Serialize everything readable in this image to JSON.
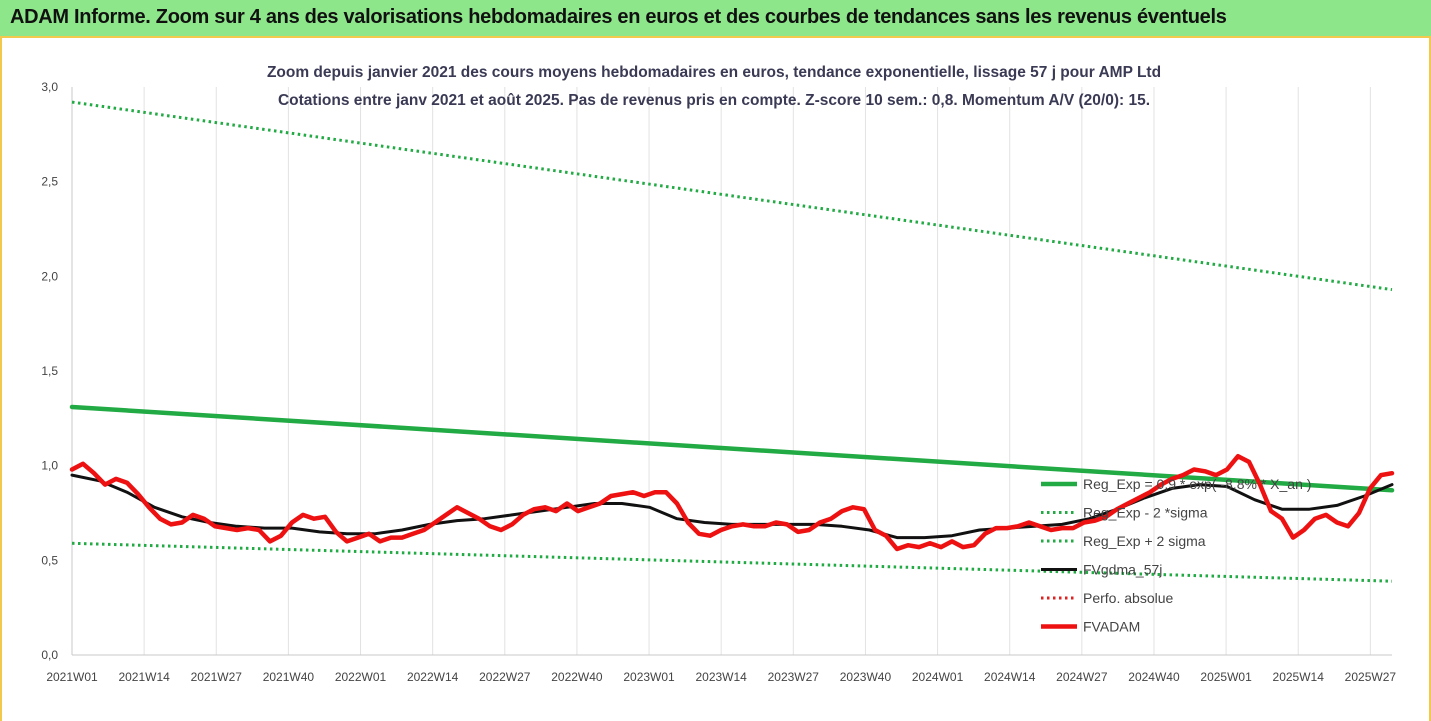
{
  "header": {
    "title": "ADAM Informe. Zoom sur 4 ans des valorisations hebdomadaires en euros et des courbes de tendances sans les revenus éventuels"
  },
  "chart_data": {
    "type": "line",
    "title_line1": "Zoom depuis janvier 2021 des cours moyens hebdomadaires en euros, tendance exponentielle, lissage 57 j pour AMP Ltd",
    "title_line2": "Cotations entre janv 2021 et août 2025. Pas de revenus pris en compte. Z-score 10 sem.: 0,8. Momentum A/V (20/0): 15.",
    "x_tick_labels": [
      "2021W01",
      "2021W14",
      "2021W27",
      "2021W40",
      "2022W01",
      "2022W14",
      "2022W27",
      "2022W40",
      "2023W01",
      "2023W14",
      "2023W27",
      "2023W40",
      "2024W01",
      "2024W14",
      "2024W27",
      "2024W40",
      "2025W01",
      "2025W14",
      "2025W27"
    ],
    "x_range_weeks": [
      0,
      240
    ],
    "ylim": [
      0,
      3.0
    ],
    "y_ticks": [
      "0,0",
      "0,5",
      "1,0",
      "1,5",
      "2,0",
      "2,5",
      "3,0"
    ],
    "grid": "vertical",
    "legend_position": "right-bottom",
    "series": [
      {
        "name": "Reg_Exp = 0,9 * exp( -8,8% * X_an )",
        "color": "#22aa44",
        "style": "solid-thick",
        "x": [
          0,
          240
        ],
        "y": [
          1.31,
          0.87
        ]
      },
      {
        "name": "Reg_Exp - 2 *sigma",
        "color": "#22aa44",
        "style": "dotted",
        "x": [
          0,
          240
        ],
        "y": [
          0.59,
          0.39
        ]
      },
      {
        "name": "Reg_Exp + 2 sigma",
        "color": "#22aa44",
        "style": "dotted",
        "x": [
          0,
          240
        ],
        "y": [
          2.92,
          1.93
        ]
      },
      {
        "name": "FVgdma_57j",
        "color": "#111111",
        "style": "solid",
        "x": [
          0,
          5,
          10,
          15,
          20,
          25,
          30,
          35,
          40,
          45,
          50,
          55,
          60,
          65,
          70,
          75,
          80,
          85,
          90,
          95,
          100,
          105,
          110,
          115,
          120,
          125,
          130,
          135,
          140,
          145,
          150,
          155,
          160,
          165,
          170,
          175,
          180,
          185,
          190,
          195,
          200,
          205,
          210,
          215,
          220,
          225,
          230,
          235,
          240
        ],
        "y": [
          0.95,
          0.92,
          0.86,
          0.78,
          0.73,
          0.7,
          0.68,
          0.67,
          0.67,
          0.65,
          0.64,
          0.64,
          0.66,
          0.69,
          0.71,
          0.72,
          0.74,
          0.76,
          0.78,
          0.8,
          0.8,
          0.78,
          0.72,
          0.7,
          0.69,
          0.69,
          0.69,
          0.69,
          0.68,
          0.66,
          0.62,
          0.62,
          0.63,
          0.66,
          0.67,
          0.68,
          0.69,
          0.72,
          0.77,
          0.83,
          0.88,
          0.9,
          0.89,
          0.82,
          0.77,
          0.77,
          0.79,
          0.84,
          0.9
        ]
      },
      {
        "name": "Perfo. absolue",
        "color": "#dd2222",
        "style": "dotted",
        "x": [],
        "y": []
      },
      {
        "name": "FVADAM",
        "color": "#ee1111",
        "style": "solid-thick",
        "x": [
          0,
          2,
          4,
          6,
          8,
          10,
          12,
          14,
          16,
          18,
          20,
          22,
          24,
          26,
          28,
          30,
          32,
          34,
          36,
          38,
          40,
          42,
          44,
          46,
          48,
          50,
          52,
          54,
          56,
          58,
          60,
          62,
          64,
          66,
          68,
          70,
          72,
          74,
          76,
          78,
          80,
          82,
          84,
          86,
          88,
          90,
          92,
          94,
          96,
          98,
          100,
          102,
          104,
          106,
          108,
          110,
          112,
          114,
          116,
          118,
          120,
          122,
          124,
          126,
          128,
          130,
          132,
          134,
          136,
          138,
          140,
          142,
          144,
          146,
          148,
          150,
          152,
          154,
          156,
          158,
          160,
          162,
          164,
          166,
          168,
          170,
          172,
          174,
          176,
          178,
          180,
          182,
          184,
          186,
          188,
          190,
          192,
          194,
          196,
          198,
          200,
          202,
          204,
          206,
          208,
          210,
          212,
          214,
          216,
          218,
          220,
          222,
          224,
          226,
          228,
          230,
          232,
          234,
          236,
          238,
          240
        ],
        "y": [
          0.98,
          1.01,
          0.96,
          0.9,
          0.93,
          0.91,
          0.85,
          0.78,
          0.72,
          0.69,
          0.7,
          0.74,
          0.72,
          0.68,
          0.67,
          0.66,
          0.67,
          0.66,
          0.6,
          0.63,
          0.7,
          0.74,
          0.72,
          0.73,
          0.65,
          0.6,
          0.62,
          0.64,
          0.6,
          0.62,
          0.62,
          0.64,
          0.66,
          0.7,
          0.74,
          0.78,
          0.75,
          0.72,
          0.68,
          0.66,
          0.69,
          0.74,
          0.77,
          0.78,
          0.76,
          0.8,
          0.76,
          0.78,
          0.8,
          0.84,
          0.85,
          0.86,
          0.84,
          0.86,
          0.86,
          0.8,
          0.7,
          0.64,
          0.63,
          0.66,
          0.68,
          0.69,
          0.68,
          0.68,
          0.7,
          0.69,
          0.65,
          0.66,
          0.7,
          0.72,
          0.76,
          0.78,
          0.77,
          0.66,
          0.63,
          0.56,
          0.58,
          0.57,
          0.59,
          0.57,
          0.6,
          0.57,
          0.58,
          0.64,
          0.67,
          0.67,
          0.68,
          0.7,
          0.68,
          0.66,
          0.67,
          0.67,
          0.7,
          0.71,
          0.73,
          0.77,
          0.8,
          0.83,
          0.86,
          0.9,
          0.93,
          0.95,
          0.98,
          0.97,
          0.95,
          0.98,
          1.05,
          1.02,
          0.9,
          0.76,
          0.72,
          0.62,
          0.66,
          0.72,
          0.74,
          0.7,
          0.68,
          0.75,
          0.88,
          0.95,
          0.96
        ]
      }
    ]
  }
}
